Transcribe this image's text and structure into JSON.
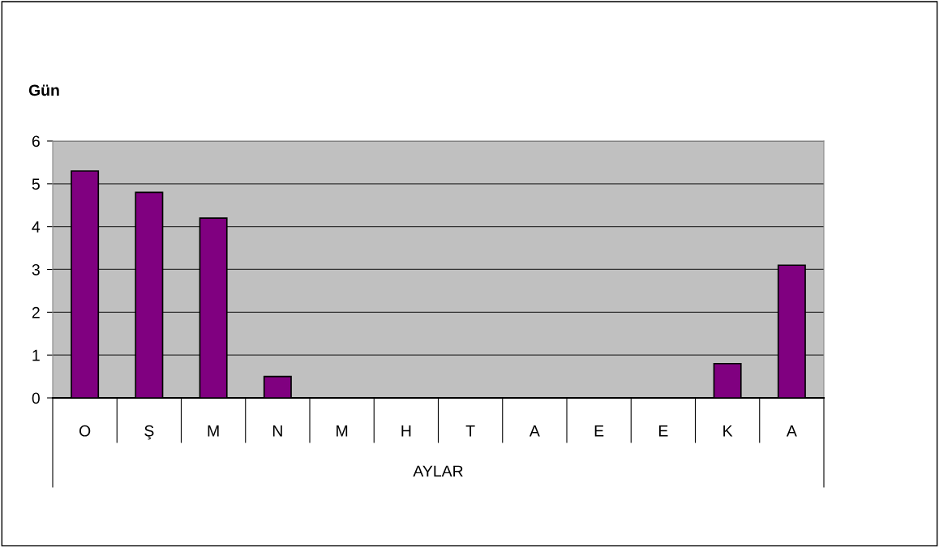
{
  "chart_data": {
    "type": "bar",
    "ylabel": "Gün",
    "xlabel": "AYLAR",
    "categories": [
      "O",
      "Ş",
      "M",
      "N",
      "M",
      "H",
      "T",
      "A",
      "E",
      "E",
      "K",
      "A"
    ],
    "values": [
      5.3,
      4.8,
      4.2,
      0.5,
      0,
      0,
      0,
      0,
      0,
      0,
      0.8,
      3.1
    ],
    "color": "#800080",
    "ylim": [
      0,
      6
    ],
    "yticks": [
      0,
      1,
      2,
      3,
      4,
      5,
      6
    ],
    "grid": "y",
    "legend": false
  }
}
